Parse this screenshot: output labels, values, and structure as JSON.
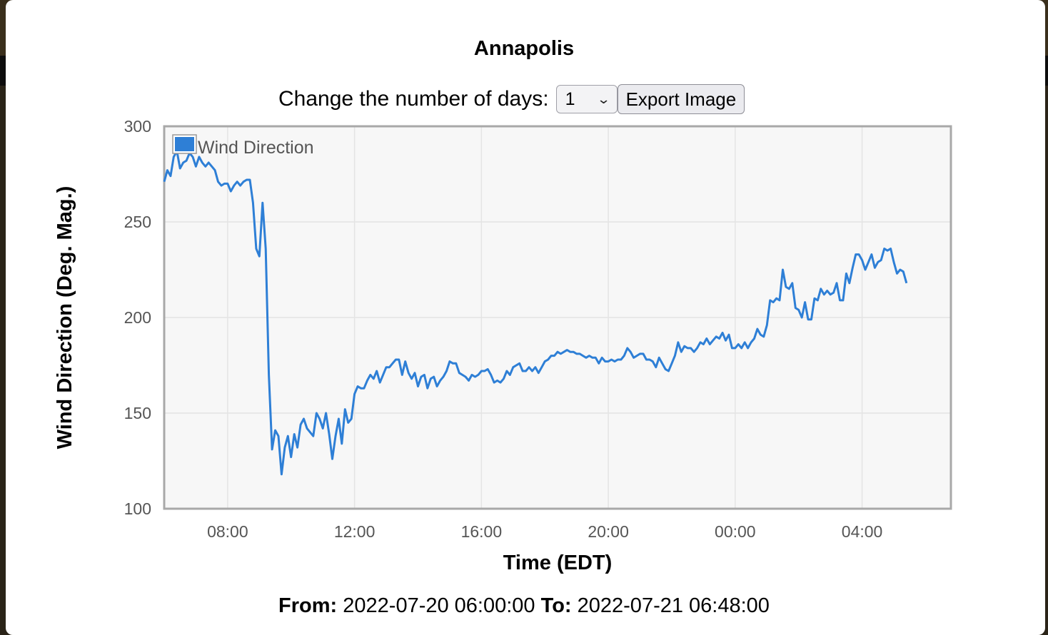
{
  "title": "Annapolis",
  "controls": {
    "days_label": "Change the number of days:",
    "days_value": "1",
    "export_label": "Export Image"
  },
  "footer": {
    "from_label": "From:",
    "from_value": "2022-07-20 06:00:00",
    "to_label": "To:",
    "to_value": "2022-07-21 06:48:00"
  },
  "colors": {
    "series": "#2e7fd6",
    "plot_bg": "#f7f7f7",
    "grid": "#e4e4e4",
    "frame": "#a8a8a8"
  },
  "chart_data": {
    "type": "line",
    "xlabel": "Time (EDT)",
    "ylabel": "Wind Direction (Deg. Mag.)",
    "x_range": [
      "2022-07-20 06:00",
      "2022-07-21 06:48"
    ],
    "ylim": [
      100,
      300
    ],
    "y_ticks": [
      100,
      150,
      200,
      250,
      300
    ],
    "x_ticks": [
      "08:00",
      "12:00",
      "16:00",
      "20:00",
      "00:00",
      "04:00"
    ],
    "grid": true,
    "legend": "top-left",
    "series": [
      {
        "name": "Wind Direction",
        "color": "#2e7fd6",
        "points": [
          [
            "06:00",
            271
          ],
          [
            "06:06",
            277
          ],
          [
            "06:12",
            274
          ],
          [
            "06:18",
            284
          ],
          [
            "06:24",
            287
          ],
          [
            "06:30",
            278
          ],
          [
            "06:36",
            281
          ],
          [
            "06:42",
            282
          ],
          [
            "06:48",
            286
          ],
          [
            "06:54",
            284
          ],
          [
            "07:00",
            279
          ],
          [
            "07:06",
            284
          ],
          [
            "07:12",
            281
          ],
          [
            "07:18",
            279
          ],
          [
            "07:24",
            281
          ],
          [
            "07:30",
            279
          ],
          [
            "07:36",
            277
          ],
          [
            "07:42",
            271
          ],
          [
            "07:48",
            269
          ],
          [
            "07:54",
            270
          ],
          [
            "08:00",
            270
          ],
          [
            "08:06",
            266
          ],
          [
            "08:12",
            269
          ],
          [
            "08:18",
            271
          ],
          [
            "08:24",
            269
          ],
          [
            "08:30",
            271
          ],
          [
            "08:36",
            272
          ],
          [
            "08:42",
            272
          ],
          [
            "08:48",
            260
          ],
          [
            "08:54",
            236
          ],
          [
            "09:00",
            232
          ],
          [
            "09:06",
            260
          ],
          [
            "09:12",
            236
          ],
          [
            "09:18",
            170
          ],
          [
            "09:24",
            131
          ],
          [
            "09:30",
            141
          ],
          [
            "09:36",
            138
          ],
          [
            "09:42",
            118
          ],
          [
            "09:48",
            132
          ],
          [
            "09:54",
            138
          ],
          [
            "10:00",
            127
          ],
          [
            "10:06",
            139
          ],
          [
            "10:12",
            132
          ],
          [
            "10:18",
            144
          ],
          [
            "10:24",
            147
          ],
          [
            "10:30",
            142
          ],
          [
            "10:36",
            140
          ],
          [
            "10:42",
            138
          ],
          [
            "10:48",
            150
          ],
          [
            "10:54",
            147
          ],
          [
            "11:00",
            142
          ],
          [
            "11:06",
            150
          ],
          [
            "11:12",
            139
          ],
          [
            "11:18",
            126
          ],
          [
            "11:24",
            138
          ],
          [
            "11:30",
            147
          ],
          [
            "11:36",
            134
          ],
          [
            "11:42",
            152
          ],
          [
            "11:48",
            145
          ],
          [
            "11:54",
            147
          ],
          [
            "12:00",
            160
          ],
          [
            "12:06",
            164
          ],
          [
            "12:12",
            163
          ],
          [
            "12:18",
            163
          ],
          [
            "12:24",
            167
          ],
          [
            "12:30",
            170
          ],
          [
            "12:36",
            168
          ],
          [
            "12:42",
            172
          ],
          [
            "12:48",
            166
          ],
          [
            "12:54",
            170
          ],
          [
            "13:00",
            174
          ],
          [
            "13:06",
            174
          ],
          [
            "13:12",
            176
          ],
          [
            "13:18",
            178
          ],
          [
            "13:24",
            178
          ],
          [
            "13:30",
            170
          ],
          [
            "13:36",
            177
          ],
          [
            "13:42",
            171
          ],
          [
            "13:48",
            168
          ],
          [
            "13:54",
            171
          ],
          [
            "14:00",
            164
          ],
          [
            "14:06",
            169
          ],
          [
            "14:12",
            170
          ],
          [
            "14:18",
            163
          ],
          [
            "14:24",
            168
          ],
          [
            "14:30",
            169
          ],
          [
            "14:36",
            164
          ],
          [
            "14:42",
            167
          ],
          [
            "14:48",
            169
          ],
          [
            "14:54",
            172
          ],
          [
            "15:00",
            177
          ],
          [
            "15:06",
            176
          ],
          [
            "15:12",
            176
          ],
          [
            "15:18",
            171
          ],
          [
            "15:24",
            170
          ],
          [
            "15:30",
            169
          ],
          [
            "15:36",
            167
          ],
          [
            "15:42",
            170
          ],
          [
            "15:48",
            169
          ],
          [
            "15:54",
            170
          ],
          [
            "16:00",
            172
          ],
          [
            "16:06",
            172
          ],
          [
            "16:12",
            173
          ],
          [
            "16:18",
            170
          ],
          [
            "16:24",
            166
          ],
          [
            "16:30",
            167
          ],
          [
            "16:36",
            166
          ],
          [
            "16:42",
            168
          ],
          [
            "16:48",
            172
          ],
          [
            "16:54",
            170
          ],
          [
            "17:00",
            174
          ],
          [
            "17:06",
            175
          ],
          [
            "17:12",
            176
          ],
          [
            "17:18",
            172
          ],
          [
            "17:24",
            172
          ],
          [
            "17:30",
            174
          ],
          [
            "17:36",
            172
          ],
          [
            "17:42",
            174
          ],
          [
            "17:48",
            171
          ],
          [
            "17:54",
            174
          ],
          [
            "18:00",
            177
          ],
          [
            "18:06",
            178
          ],
          [
            "18:12",
            180
          ],
          [
            "18:18",
            180
          ],
          [
            "18:24",
            182
          ],
          [
            "18:30",
            181
          ],
          [
            "18:36",
            182
          ],
          [
            "18:42",
            183
          ],
          [
            "18:48",
            182
          ],
          [
            "18:54",
            182
          ],
          [
            "19:00",
            181
          ],
          [
            "19:06",
            181
          ],
          [
            "19:12",
            180
          ],
          [
            "19:18",
            179
          ],
          [
            "19:24",
            180
          ],
          [
            "19:30",
            179
          ],
          [
            "19:36",
            179
          ],
          [
            "19:42",
            176
          ],
          [
            "19:48",
            179
          ],
          [
            "19:54",
            177
          ],
          [
            "20:00",
            177
          ],
          [
            "20:06",
            178
          ],
          [
            "20:12",
            177
          ],
          [
            "20:18",
            178
          ],
          [
            "20:24",
            178
          ],
          [
            "20:30",
            180
          ],
          [
            "20:36",
            184
          ],
          [
            "20:42",
            182
          ],
          [
            "20:48",
            179
          ],
          [
            "20:54",
            180
          ],
          [
            "21:00",
            181
          ],
          [
            "21:06",
            181
          ],
          [
            "21:12",
            178
          ],
          [
            "21:18",
            178
          ],
          [
            "21:24",
            177
          ],
          [
            "21:30",
            174
          ],
          [
            "21:36",
            179
          ],
          [
            "21:42",
            176
          ],
          [
            "21:48",
            173
          ],
          [
            "21:54",
            172
          ],
          [
            "22:00",
            176
          ],
          [
            "22:06",
            180
          ],
          [
            "22:12",
            187
          ],
          [
            "22:18",
            182
          ],
          [
            "22:24",
            185
          ],
          [
            "22:30",
            184
          ],
          [
            "22:36",
            184
          ],
          [
            "22:42",
            182
          ],
          [
            "22:48",
            184
          ],
          [
            "22:54",
            187
          ],
          [
            "23:00",
            186
          ],
          [
            "23:06",
            189
          ],
          [
            "23:12",
            186
          ],
          [
            "23:18",
            188
          ],
          [
            "23:24",
            190
          ],
          [
            "23:30",
            189
          ],
          [
            "23:36",
            192
          ],
          [
            "23:42",
            188
          ],
          [
            "23:48",
            191
          ],
          [
            "23:54",
            184
          ],
          [
            "00:00",
            184
          ],
          [
            "00:06",
            186
          ],
          [
            "00:12",
            184
          ],
          [
            "00:18",
            187
          ],
          [
            "00:24",
            184
          ],
          [
            "00:30",
            187
          ],
          [
            "00:36",
            189
          ],
          [
            "00:42",
            194
          ],
          [
            "00:48",
            191
          ],
          [
            "00:54",
            190
          ],
          [
            "01:00",
            196
          ],
          [
            "01:06",
            209
          ],
          [
            "01:12",
            208
          ],
          [
            "01:18",
            210
          ],
          [
            "01:24",
            209
          ],
          [
            "01:30",
            225
          ],
          [
            "01:36",
            216
          ],
          [
            "01:42",
            215
          ],
          [
            "01:48",
            218
          ],
          [
            "01:54",
            205
          ],
          [
            "02:00",
            204
          ],
          [
            "02:06",
            200
          ],
          [
            "02:12",
            208
          ],
          [
            "02:18",
            199
          ],
          [
            "02:24",
            199
          ],
          [
            "02:30",
            210
          ],
          [
            "02:36",
            209
          ],
          [
            "02:42",
            215
          ],
          [
            "02:48",
            212
          ],
          [
            "02:54",
            214
          ],
          [
            "03:00",
            212
          ],
          [
            "03:06",
            213
          ],
          [
            "03:12",
            218
          ],
          [
            "03:18",
            209
          ],
          [
            "03:24",
            209
          ],
          [
            "03:30",
            223
          ],
          [
            "03:36",
            218
          ],
          [
            "03:42",
            226
          ],
          [
            "03:48",
            233
          ],
          [
            "03:54",
            233
          ],
          [
            "04:00",
            230
          ],
          [
            "04:06",
            225
          ],
          [
            "04:12",
            229
          ],
          [
            "04:18",
            233
          ],
          [
            "04:24",
            226
          ],
          [
            "04:30",
            229
          ],
          [
            "04:36",
            230
          ],
          [
            "04:42",
            236
          ],
          [
            "04:48",
            235
          ],
          [
            "04:54",
            236
          ],
          [
            "05:00",
            229
          ],
          [
            "05:06",
            223
          ],
          [
            "05:12",
            225
          ],
          [
            "05:18",
            224
          ],
          [
            "05:24",
            218
          ]
        ]
      }
    ]
  }
}
